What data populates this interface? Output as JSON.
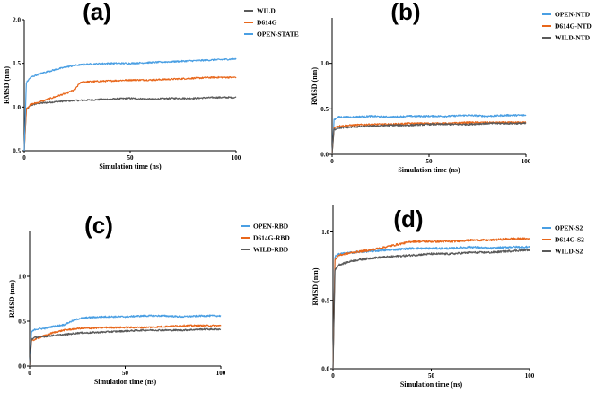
{
  "chart_data": [
    {
      "type": "line",
      "panel": "(a)",
      "xlabel": "Simulation time (ns)",
      "ylabel": "RMSD (nm)",
      "xlim": [
        0,
        100
      ],
      "ylim": [
        0.5,
        2.0
      ],
      "xticks": [
        0,
        50,
        100
      ],
      "yticks": [
        0.5,
        1.0,
        1.5,
        2.0
      ],
      "legend_position": "top-right",
      "series": [
        {
          "name": "WILD",
          "color": "#5a5a5a",
          "x": [
            0,
            1,
            3,
            6,
            10,
            15,
            20,
            30,
            40,
            50,
            60,
            70,
            80,
            90,
            100
          ],
          "y": [
            0.5,
            0.97,
            1.02,
            1.04,
            1.05,
            1.06,
            1.07,
            1.08,
            1.09,
            1.1,
            1.09,
            1.1,
            1.1,
            1.11,
            1.11
          ]
        },
        {
          "name": "D614G",
          "color": "#e8671b",
          "x": [
            0,
            1,
            3,
            6,
            10,
            15,
            20,
            24,
            26,
            28,
            30,
            40,
            50,
            60,
            70,
            80,
            90,
            100
          ],
          "y": [
            0.5,
            0.98,
            1.03,
            1.05,
            1.08,
            1.12,
            1.16,
            1.2,
            1.27,
            1.29,
            1.29,
            1.3,
            1.31,
            1.31,
            1.32,
            1.33,
            1.34,
            1.34
          ]
        },
        {
          "name": "OPEN-STATE",
          "color": "#4a9fe3",
          "x": [
            0,
            1,
            3,
            6,
            10,
            15,
            20,
            25,
            30,
            40,
            50,
            60,
            70,
            80,
            90,
            100
          ],
          "y": [
            0.5,
            1.28,
            1.34,
            1.37,
            1.4,
            1.43,
            1.46,
            1.48,
            1.49,
            1.5,
            1.5,
            1.51,
            1.52,
            1.53,
            1.54,
            1.55
          ]
        }
      ]
    },
    {
      "type": "line",
      "panel": "(b)",
      "xlabel": "Simulation time (ns)",
      "ylabel": "RMSD (nm)",
      "xlim": [
        0,
        100
      ],
      "ylim": [
        0.0,
        1.5
      ],
      "xticks": [
        0,
        50,
        100
      ],
      "yticks": [
        0.0,
        0.5,
        1.0
      ],
      "legend_position": "top-right",
      "series": [
        {
          "name": "OPEN-NTD",
          "color": "#4a9fe3",
          "x": [
            0,
            1,
            3,
            10,
            20,
            30,
            40,
            50,
            60,
            70,
            80,
            90,
            100
          ],
          "y": [
            0.0,
            0.38,
            0.41,
            0.41,
            0.42,
            0.41,
            0.42,
            0.42,
            0.42,
            0.43,
            0.42,
            0.43,
            0.43
          ]
        },
        {
          "name": "D614G-NTD",
          "color": "#e8671b",
          "x": [
            0,
            1,
            3,
            10,
            20,
            30,
            40,
            50,
            60,
            70,
            80,
            90,
            100
          ],
          "y": [
            0.0,
            0.29,
            0.31,
            0.32,
            0.33,
            0.33,
            0.34,
            0.34,
            0.34,
            0.35,
            0.35,
            0.35,
            0.35
          ]
        },
        {
          "name": "WILD-NTD",
          "color": "#5a5a5a",
          "x": [
            0,
            1,
            3,
            10,
            20,
            30,
            40,
            50,
            60,
            70,
            80,
            90,
            100
          ],
          "y": [
            0.0,
            0.27,
            0.29,
            0.3,
            0.31,
            0.32,
            0.32,
            0.33,
            0.33,
            0.33,
            0.34,
            0.34,
            0.34
          ]
        }
      ]
    },
    {
      "type": "line",
      "panel": "(c)",
      "xlabel": "Simulation time (ns)",
      "ylabel": "RMSD (nm)",
      "xlim": [
        0,
        100
      ],
      "ylim": [
        0.0,
        1.5
      ],
      "xticks": [
        0,
        50,
        100
      ],
      "yticks": [
        0.0,
        0.5,
        1.0
      ],
      "legend_position": "top-right",
      "series": [
        {
          "name": "OPEN-RBD",
          "color": "#4a9fe3",
          "x": [
            0,
            1,
            3,
            8,
            12,
            18,
            22,
            26,
            30,
            40,
            50,
            60,
            70,
            80,
            90,
            100
          ],
          "y": [
            0.0,
            0.38,
            0.41,
            0.42,
            0.44,
            0.46,
            0.5,
            0.53,
            0.54,
            0.55,
            0.55,
            0.56,
            0.56,
            0.55,
            0.56,
            0.56
          ]
        },
        {
          "name": "D614G-RBD",
          "color": "#e8671b",
          "x": [
            0,
            1,
            3,
            8,
            12,
            18,
            22,
            26,
            30,
            40,
            50,
            60,
            70,
            80,
            90,
            100
          ],
          "y": [
            0.0,
            0.28,
            0.3,
            0.34,
            0.37,
            0.4,
            0.41,
            0.42,
            0.42,
            0.43,
            0.43,
            0.43,
            0.44,
            0.45,
            0.45,
            0.45
          ]
        },
        {
          "name": "WILD-RBD",
          "color": "#5a5a5a",
          "x": [
            0,
            1,
            3,
            8,
            12,
            18,
            22,
            26,
            30,
            40,
            50,
            60,
            70,
            80,
            90,
            100
          ],
          "y": [
            0.0,
            0.3,
            0.32,
            0.33,
            0.34,
            0.35,
            0.36,
            0.37,
            0.37,
            0.38,
            0.39,
            0.4,
            0.4,
            0.4,
            0.41,
            0.41
          ]
        }
      ]
    },
    {
      "type": "line",
      "panel": "(d)",
      "xlabel": "Simulation time (ns)",
      "ylabel": "RMSD (nm)",
      "xlim": [
        0,
        100
      ],
      "ylim": [
        0.0,
        1.2
      ],
      "xticks": [
        0,
        50,
        100
      ],
      "yticks": [
        0.0,
        0.5,
        1.0
      ],
      "legend_position": "top-right",
      "series": [
        {
          "name": "OPEN-S2",
          "color": "#4a9fe3",
          "x": [
            0,
            1,
            3,
            10,
            20,
            30,
            40,
            50,
            60,
            70,
            80,
            90,
            100
          ],
          "y": [
            0.0,
            0.82,
            0.84,
            0.85,
            0.86,
            0.87,
            0.88,
            0.88,
            0.88,
            0.89,
            0.88,
            0.89,
            0.89
          ]
        },
        {
          "name": "D614G-S2",
          "color": "#e8671b",
          "x": [
            0,
            1,
            3,
            10,
            20,
            30,
            40,
            50,
            60,
            70,
            80,
            90,
            100
          ],
          "y": [
            0.0,
            0.8,
            0.83,
            0.85,
            0.87,
            0.9,
            0.93,
            0.93,
            0.93,
            0.94,
            0.94,
            0.95,
            0.95
          ]
        },
        {
          "name": "WILD-S2",
          "color": "#5a5a5a",
          "x": [
            0,
            1,
            3,
            10,
            20,
            30,
            40,
            50,
            60,
            70,
            80,
            90,
            100
          ],
          "y": [
            0.0,
            0.72,
            0.76,
            0.79,
            0.81,
            0.82,
            0.83,
            0.84,
            0.84,
            0.85,
            0.85,
            0.86,
            0.87
          ]
        }
      ]
    }
  ]
}
